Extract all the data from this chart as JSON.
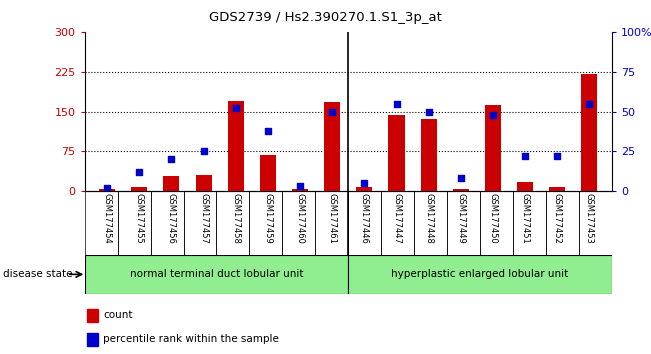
{
  "title": "GDS2739 / Hs2.390270.1.S1_3p_at",
  "categories": [
    "GSM177454",
    "GSM177455",
    "GSM177456",
    "GSM177457",
    "GSM177458",
    "GSM177459",
    "GSM177460",
    "GSM177461",
    "GSM177446",
    "GSM177447",
    "GSM177448",
    "GSM177449",
    "GSM177450",
    "GSM177451",
    "GSM177452",
    "GSM177453"
  ],
  "counts": [
    5,
    8,
    28,
    30,
    170,
    68,
    5,
    168,
    8,
    143,
    135,
    5,
    162,
    18,
    8,
    220
  ],
  "percentiles": [
    2,
    12,
    20,
    25,
    52,
    38,
    3,
    50,
    5,
    55,
    50,
    8,
    48,
    22,
    22,
    55
  ],
  "group1_label": "normal terminal duct lobular unit",
  "group2_label": "hyperplastic enlarged lobular unit",
  "group1_count": 8,
  "group2_count": 8,
  "bar_color": "#cc0000",
  "dot_color": "#0000cc",
  "ylim_left": [
    0,
    300
  ],
  "ylim_right": [
    0,
    100
  ],
  "yticks_left": [
    0,
    75,
    150,
    225,
    300
  ],
  "yticks_right": [
    0,
    25,
    50,
    75,
    100
  ],
  "background_plot": "#ffffff",
  "background_xtick": "#c8c8c8",
  "group_bg": "#90ee90",
  "legend_count_color": "#cc0000",
  "legend_pct_color": "#0000cc"
}
